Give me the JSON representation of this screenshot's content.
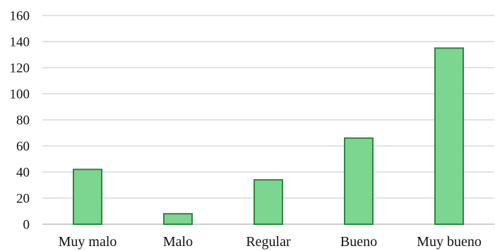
{
  "chart_data": {
    "type": "bar",
    "title": "",
    "xlabel": "",
    "ylabel": "",
    "categories": [
      "Muy malo",
      "Malo",
      "Regular",
      "Bueno",
      "Muy bueno"
    ],
    "values": [
      42,
      8,
      34,
      66,
      135
    ],
    "ylim": [
      0,
      160
    ],
    "yticks": [
      0,
      20,
      40,
      60,
      80,
      100,
      120,
      140,
      160
    ],
    "ytick_labels": [
      "0",
      "20",
      "40",
      "60",
      "80",
      "100",
      "120",
      "140",
      "160"
    ],
    "grid": true,
    "legend": "none",
    "colors": {
      "bar_fill": "#7dd690",
      "bar_stroke": "#2e8540",
      "grid": "#d9d9d9",
      "axis": "#bfbfbf",
      "text": "#111111"
    }
  }
}
